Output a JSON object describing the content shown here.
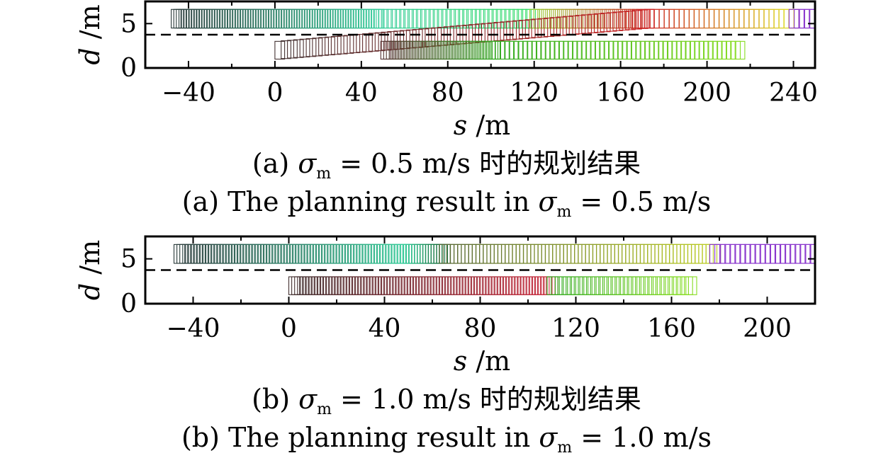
{
  "chart_data": [
    {
      "type": "scatter",
      "title": "",
      "xlabel_var": "s",
      "xlabel_unit": "/m",
      "ylabel_var": "d",
      "ylabel_unit": "/m",
      "xlim": [
        -60,
        250
      ],
      "ylim": [
        0,
        7.5
      ],
      "xticks": [
        -40,
        0,
        40,
        80,
        120,
        160,
        200,
        240
      ],
      "yticks": [
        0,
        5
      ],
      "lane_divider_d": 3.75,
      "caption_cn_prefix": "(a) ",
      "caption_cn_sigma": "σ",
      "caption_cn_sub": "m",
      "caption_cn_rest": " = 0.5 m/s 时的规划结果",
      "caption_en_prefix": "(a) The planning result in ",
      "caption_en_sigma": "σ",
      "caption_en_sub": "m",
      "caption_en_rest": " = 0.5 m/s",
      "series": [
        {
          "color_start": "#2a3a3a",
          "color_end": "#33cc99",
          "s": [
            -48,
            46
          ],
          "d": [
            4.5,
            6.6
          ],
          "count": 80
        },
        {
          "color_start": "#33cc99",
          "color_end": "#33dd66",
          "s": [
            46,
            118
          ],
          "d": [
            4.5,
            6.6
          ],
          "count": 38
        },
        {
          "color_start": "#99cc33",
          "color_end": "#cc2222",
          "s": [
            118,
            171
          ],
          "d": [
            4.5,
            6.6
          ],
          "count": 30
        },
        {
          "color_start": "#cc2222",
          "color_end": "#dddd22",
          "s": [
            171,
            238
          ],
          "d": [
            4.5,
            6.6
          ],
          "count": 30
        },
        {
          "color_start": "#8833cc",
          "color_end": "#8833cc",
          "s": [
            238,
            250
          ],
          "d": [
            4.5,
            6.6
          ],
          "count": 6
        },
        {
          "color_start": "#443333",
          "color_end": "#cc2222",
          "s": [
            0,
            171
          ],
          "d_start": [
            1.0,
            3.0
          ],
          "d_end": [
            4.5,
            6.6
          ],
          "count": 60
        },
        {
          "color_start": "#553333",
          "color_end": "#33aa22",
          "s": [
            49,
            100
          ],
          "d": [
            1.0,
            3.0
          ],
          "count": 40
        },
        {
          "color_start": "#33aa22",
          "color_end": "#88dd22",
          "s": [
            100,
            213
          ],
          "d": [
            1.0,
            3.0
          ],
          "count": 55
        }
      ]
    },
    {
      "type": "scatter",
      "title": "",
      "xlabel_var": "s",
      "xlabel_unit": "/m",
      "ylabel_var": "d",
      "ylabel_unit": "/m",
      "xlim": [
        -60,
        220
      ],
      "ylim": [
        0,
        7.5
      ],
      "xticks": [
        -40,
        0,
        40,
        80,
        120,
        160,
        200
      ],
      "yticks": [
        0,
        5
      ],
      "lane_divider_d": 3.75,
      "caption_cn_prefix": "(b) ",
      "caption_cn_sigma": "σ",
      "caption_cn_sub": "m",
      "caption_cn_rest": " = 1.0 m/s 时的规划结果",
      "caption_en_prefix": "(b) The planning result in ",
      "caption_en_sigma": "σ",
      "caption_en_sub": "m",
      "caption_en_rest": " = 1.0 m/s",
      "series": [
        {
          "color_start": "#2a3a3a",
          "color_end": "#33cc99",
          "s": [
            -48,
            48
          ],
          "d": [
            4.5,
            6.6
          ],
          "count": 80
        },
        {
          "color_start": "#33cc99",
          "color_end": "#116633",
          "s": [
            48,
            63
          ],
          "d": [
            4.5,
            6.6
          ],
          "count": 14
        },
        {
          "color_start": "#556633",
          "color_end": "#bbcc22",
          "s": [
            63,
            176
          ],
          "d": [
            4.5,
            6.6
          ],
          "count": 75
        },
        {
          "color_start": "#8833cc",
          "color_end": "#8833cc",
          "s": [
            176,
            220
          ],
          "d": [
            4.5,
            6.6
          ],
          "count": 22
        },
        {
          "color_start": "#443333",
          "color_end": "#cc3344",
          "s": [
            0,
            108
          ],
          "d": [
            1.0,
            3.0
          ],
          "count": 90
        },
        {
          "color_start": "#33aa22",
          "color_end": "#88dd22",
          "s": [
            108,
            166
          ],
          "d": [
            1.0,
            3.0
          ],
          "count": 35
        }
      ]
    }
  ]
}
